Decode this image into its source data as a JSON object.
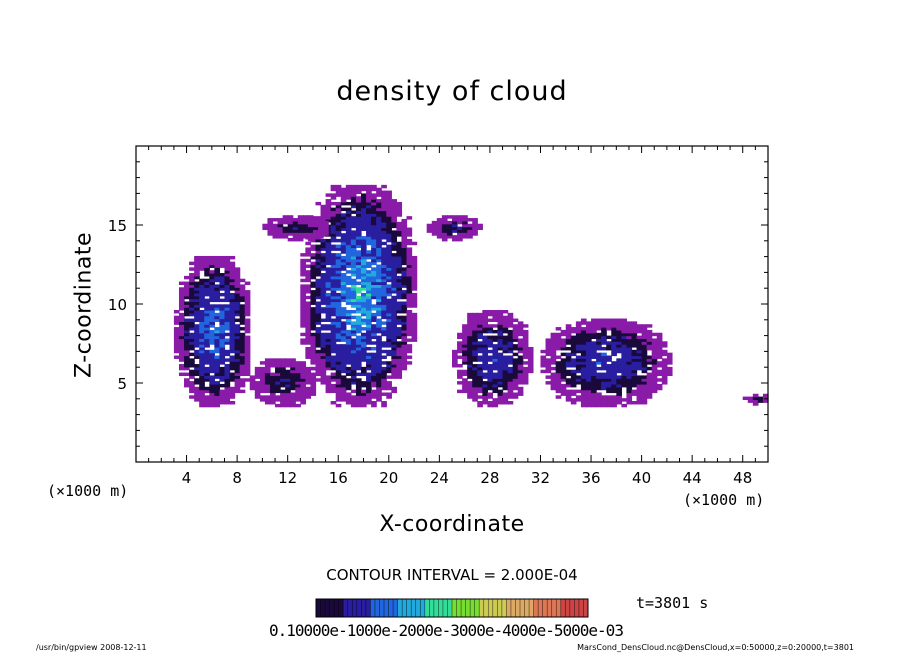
{
  "chart_data": {
    "type": "heatmap",
    "title": "density of cloud",
    "xlabel": "X-coordinate",
    "ylabel": "Z-coordinate",
    "x_unit_left": "(×1000 m)",
    "x_unit_right": "(×1000 m)",
    "xlim": [
      0,
      50
    ],
    "ylim": [
      0,
      20
    ],
    "x_ticks": [
      4,
      8,
      12,
      16,
      20,
      24,
      28,
      32,
      36,
      40,
      44,
      48
    ],
    "y_ticks": [
      5,
      10,
      15
    ],
    "contour_interval": "CONTOUR INTERVAL = 2.000E-04",
    "time_label": "t=3801 s",
    "colorbar_labels": "0.10000e-1000e-2000e-3000e-4000e-5000e-03",
    "colorbar_range": [
      0,
      0.001
    ],
    "colorbar_colors": [
      "#1a0a3c",
      "#2a1ea0",
      "#2266dd",
      "#22aadd",
      "#33dd99",
      "#77dd33",
      "#cccc55",
      "#ddaa66",
      "#dd7755",
      "#cc4444"
    ],
    "cloud_regions": [
      {
        "x": [
          3,
          9
        ],
        "z": [
          3.5,
          13
        ],
        "peak": 0.0003
      },
      {
        "x": [
          9,
          14
        ],
        "z": [
          3.5,
          6.5
        ],
        "peak": 0.0001
      },
      {
        "x": [
          13,
          22
        ],
        "z": [
          3.5,
          17.5
        ],
        "peak": 0.0004
      },
      {
        "x": [
          10,
          15
        ],
        "z": [
          14,
          15.5
        ],
        "peak": 0.0001
      },
      {
        "x": [
          23,
          27
        ],
        "z": [
          14,
          15.5
        ],
        "peak": 0.0001
      },
      {
        "x": [
          25,
          31
        ],
        "z": [
          3.5,
          9.5
        ],
        "peak": 0.0002
      },
      {
        "x": [
          32,
          42
        ],
        "z": [
          3.5,
          9
        ],
        "peak": 0.0002
      },
      {
        "x": [
          48,
          50
        ],
        "z": [
          3.6,
          4.2
        ],
        "peak": 0.0001
      }
    ]
  },
  "footer": {
    "left": "/usr/bin/gpview   2008-12-11",
    "right": "MarsCond_DensCloud.nc@DensCloud,x=0:50000,z=0:20000,t=3801"
  }
}
